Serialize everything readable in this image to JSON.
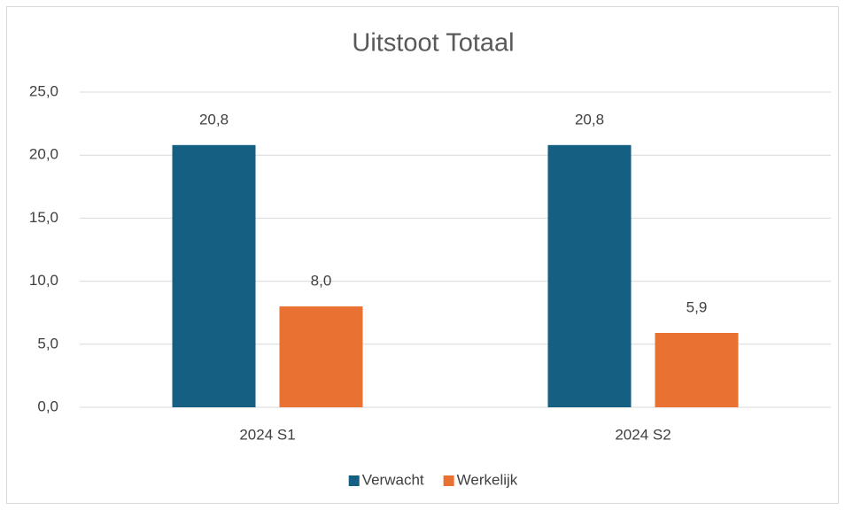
{
  "chart_data": {
    "type": "bar",
    "title": "Uitstoot Totaal",
    "categories": [
      "2024 S1",
      "2024 S2"
    ],
    "series": [
      {
        "name": "Verwacht",
        "color": "#156082",
        "values": [
          20.8,
          20.8
        ],
        "value_labels": [
          "20,8",
          "20,8"
        ]
      },
      {
        "name": "Werkelijk",
        "color": "#e97132",
        "values": [
          8.0,
          5.9
        ],
        "value_labels": [
          "8,0",
          "5,9"
        ]
      }
    ],
    "ylim": [
      0,
      25
    ],
    "yticks": [
      {
        "value": 0,
        "label": "0,0"
      },
      {
        "value": 5,
        "label": "5,0"
      },
      {
        "value": 10,
        "label": "10,0"
      },
      {
        "value": 15,
        "label": "15,0"
      },
      {
        "value": 20,
        "label": "20,0"
      },
      {
        "value": 25,
        "label": "25,0"
      }
    ],
    "grid": true,
    "legend": "bottom"
  }
}
